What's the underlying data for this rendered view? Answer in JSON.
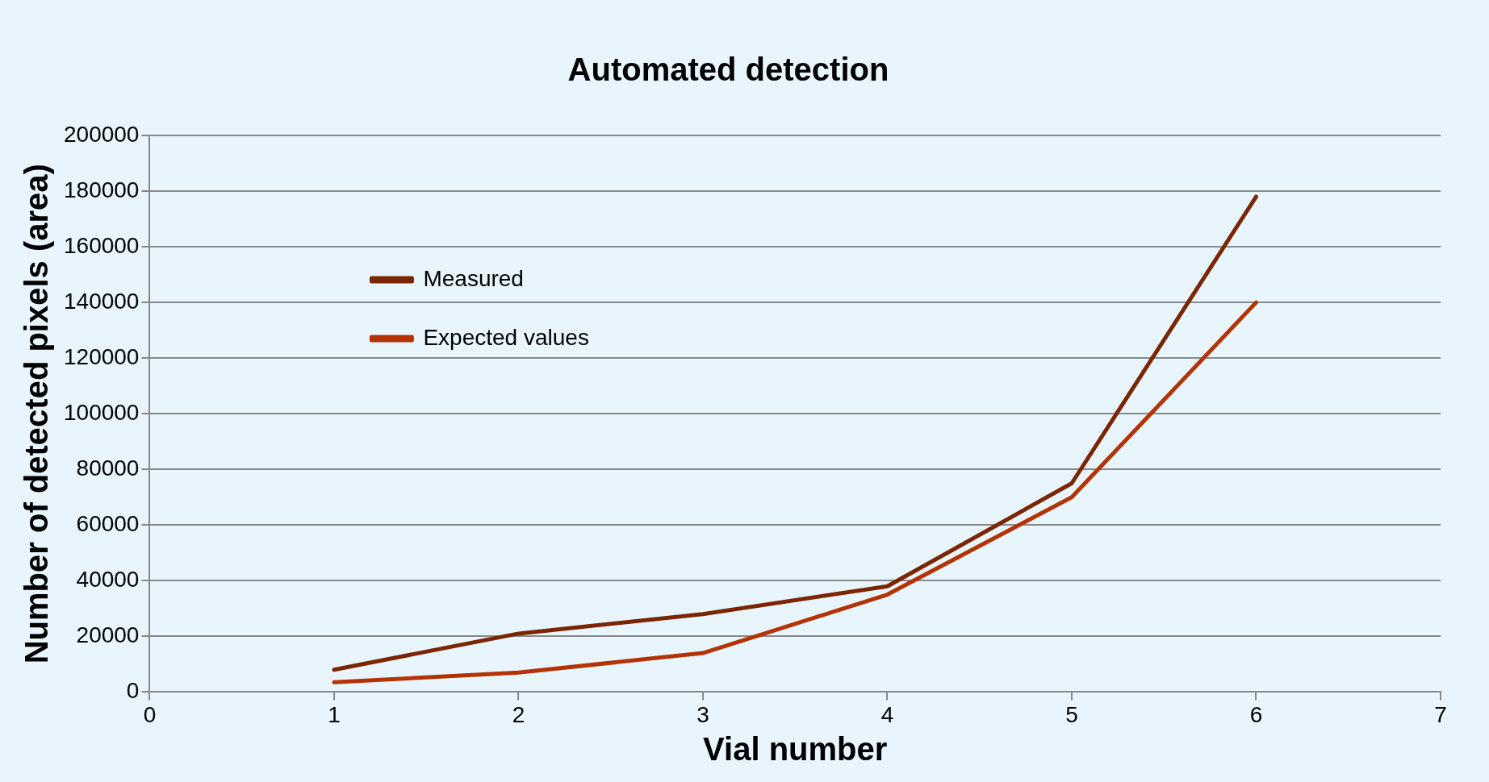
{
  "chart_data": {
    "type": "line",
    "title": "Automated detection",
    "xlabel": "Vial number",
    "ylabel": "Number of detected pixels (area)",
    "x": [
      1,
      2,
      3,
      4,
      5,
      6
    ],
    "series": [
      {
        "name": "Measured",
        "color": "#7b2502",
        "values": [
          8000,
          21000,
          28000,
          38000,
          75000,
          178000
        ]
      },
      {
        "name": "Expected values",
        "color": "#b33304",
        "values": [
          3500,
          7000,
          14000,
          35000,
          70000,
          140000
        ]
      }
    ],
    "xlim": [
      0,
      7
    ],
    "xticks": [
      0,
      1,
      2,
      3,
      4,
      5,
      6,
      7
    ],
    "ylim": [
      0,
      200000
    ],
    "yticks": [
      0,
      20000,
      40000,
      60000,
      80000,
      100000,
      120000,
      140000,
      160000,
      180000,
      200000
    ],
    "grid": "y",
    "legend": "top left",
    "marker": "none",
    "line_style": "solid"
  }
}
